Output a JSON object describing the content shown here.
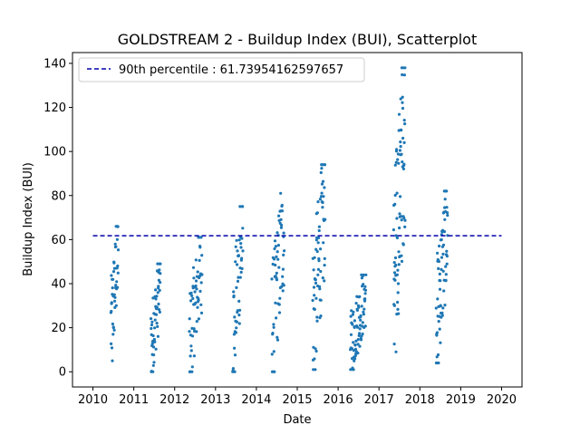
{
  "chart_data": {
    "type": "scatter",
    "title": "GOLDSTREAM 2 - Buildup Index (BUI), Scatterplot",
    "xlabel": "Date",
    "ylabel": "Buildup Index (BUI)",
    "xlim": [
      2009.5,
      2020.5
    ],
    "ylim": [
      -6.9,
      144.9
    ],
    "x_ticks": [
      2010,
      2011,
      2012,
      2013,
      2014,
      2015,
      2016,
      2017,
      2018,
      2019,
      2020
    ],
    "y_ticks": [
      0,
      20,
      40,
      60,
      80,
      100,
      120,
      140
    ],
    "point_color": "#1f77b4",
    "reference_line": {
      "label": "90th percentile : 61.73954162597657",
      "value": 61.73954162597657,
      "x_range": [
        2010,
        2020
      ],
      "color": "#0000aa",
      "style": "dashed"
    },
    "legend_position": "top-left",
    "grid": false,
    "seasons": [
      {
        "year": 2010,
        "x_start": 2010.44,
        "x_end": 2010.62,
        "y_min": 5,
        "y_max": 66,
        "n": 45
      },
      {
        "year": 2011,
        "x_start": 2011.42,
        "x_end": 2011.65,
        "y_min": 0,
        "y_max": 49,
        "n": 55
      },
      {
        "year": 2012,
        "x_start": 2012.36,
        "x_end": 2012.67,
        "y_min": 0,
        "y_max": 61,
        "n": 60
      },
      {
        "year": 2013,
        "x_start": 2013.42,
        "x_end": 2013.67,
        "y_min": 0,
        "y_max": 75,
        "n": 50
      },
      {
        "year": 2014,
        "x_start": 2014.38,
        "x_end": 2014.68,
        "y_min": 0,
        "y_max": 81,
        "n": 60
      },
      {
        "year": 2015,
        "x_start": 2015.38,
        "x_end": 2015.68,
        "y_min": 1,
        "y_max": 94,
        "n": 70
      },
      {
        "year": 2016,
        "x_start": 2016.3,
        "x_end": 2016.68,
        "y_min": 1,
        "y_max": 44,
        "n": 80
      },
      {
        "year": 2017,
        "x_start": 2017.36,
        "x_end": 2017.64,
        "y_min": 9,
        "y_max": 138,
        "n": 80
      },
      {
        "year": 2018,
        "x_start": 2018.4,
        "x_end": 2018.68,
        "y_min": 4,
        "y_max": 82,
        "n": 70
      }
    ]
  }
}
